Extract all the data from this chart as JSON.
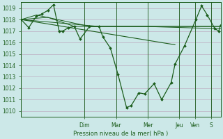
{
  "background_color": "#cce8e8",
  "grid_color_major": "#b8d8d8",
  "grid_color_minor": "#c8e0e0",
  "line_color": "#1a5c1a",
  "ylabel": "Pression niveau de la mer( hPa )",
  "ylim": [
    1009.5,
    1019.5
  ],
  "yticks": [
    1010,
    1011,
    1012,
    1013,
    1014,
    1015,
    1016,
    1017,
    1018,
    1019
  ],
  "day_labels": [
    "Dim",
    "Mar",
    "Mer",
    "Jeu",
    "Ven",
    "S"
  ],
  "day_positions": [
    0.333,
    0.5,
    0.667,
    0.833,
    0.917,
    1.0
  ],
  "xlim": [
    0.0,
    1.05
  ],
  "series1": [
    [
      0.0,
      1018.0
    ],
    [
      0.04,
      1017.3
    ],
    [
      0.08,
      1018.3
    ],
    [
      0.11,
      1018.5
    ],
    [
      0.14,
      1018.8
    ],
    [
      0.17,
      1019.3
    ],
    [
      0.2,
      1017.0
    ],
    [
      0.22,
      1017.0
    ],
    [
      0.25,
      1017.3
    ],
    [
      0.28,
      1017.4
    ],
    [
      0.31,
      1016.3
    ],
    [
      0.36,
      1017.4
    ],
    [
      0.41,
      1017.4
    ],
    [
      0.43,
      1016.5
    ],
    [
      0.47,
      1015.5
    ],
    [
      0.51,
      1013.2
    ],
    [
      0.555,
      1010.3
    ],
    [
      0.58,
      1010.5
    ],
    [
      0.62,
      1011.6
    ],
    [
      0.65,
      1011.5
    ],
    [
      0.7,
      1012.4
    ],
    [
      0.74,
      1011.0
    ],
    [
      0.79,
      1012.5
    ],
    [
      0.81,
      1014.1
    ],
    [
      0.86,
      1015.7
    ],
    [
      0.92,
      1018.0
    ],
    [
      0.95,
      1019.2
    ],
    [
      0.98,
      1018.4
    ],
    [
      1.02,
      1017.2
    ],
    [
      1.04,
      1017.0
    ],
    [
      1.05,
      1017.5
    ]
  ],
  "trend_line": [
    [
      0.0,
      1018.0
    ],
    [
      0.81,
      1015.8
    ]
  ],
  "extra_lines": [
    [
      [
        0.0,
        1018.0
      ],
      [
        0.08,
        1018.4
      ],
      [
        0.36,
        1017.4
      ],
      [
        0.65,
        1017.4
      ],
      [
        1.05,
        1017.4
      ]
    ],
    [
      [
        0.0,
        1018.0
      ],
      [
        0.14,
        1018.2
      ],
      [
        0.28,
        1017.4
      ],
      [
        0.65,
        1017.4
      ],
      [
        1.05,
        1017.2
      ]
    ],
    [
      [
        0.0,
        1018.0
      ],
      [
        0.41,
        1017.4
      ],
      [
        0.65,
        1017.4
      ],
      [
        1.05,
        1017.4
      ]
    ]
  ]
}
